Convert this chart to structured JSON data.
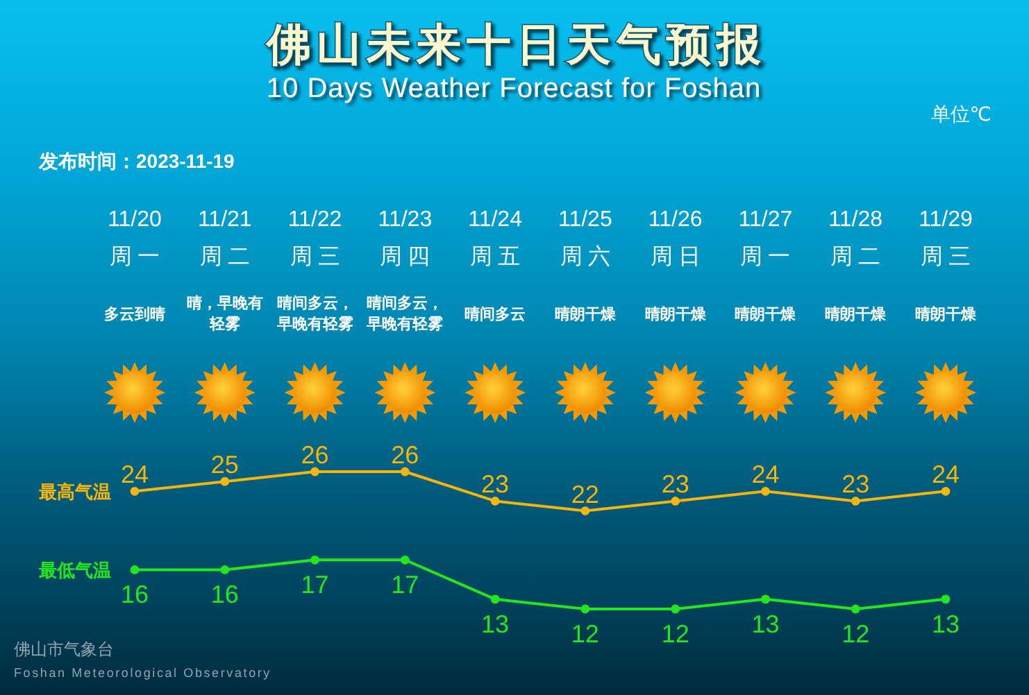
{
  "chart_data": {
    "type": "line",
    "title": "佛山未来十日天气预报",
    "subtitle": "10 Days Weather Forecast for Foshan",
    "categories": [
      "11/20\n周一",
      "11/21\n周二",
      "11/22\n周三",
      "11/23\n周四",
      "11/24\n周五",
      "11/25\n周六",
      "11/26\n周日",
      "11/27\n周一",
      "11/28\n周二",
      "11/29\n周三"
    ],
    "series": [
      {
        "name": "最高气温",
        "color": "#f5b50a",
        "values": [
          24,
          25,
          26,
          26,
          23,
          22,
          23,
          24,
          23,
          24
        ]
      },
      {
        "name": "最低气温",
        "color": "#22e61e",
        "values": [
          16,
          16,
          17,
          17,
          13,
          12,
          12,
          13,
          12,
          13
        ]
      }
    ],
    "data_labels": true,
    "marker": "circle",
    "annotations": [
      "单位℃",
      "发布时间：2023-11-19",
      "多云到晴",
      "晴，早晚有轻雾",
      "晴间多云，早晚有轻雾",
      "晴间多云，早晚有轻雾",
      "晴间多云",
      "晴朗干燥",
      "晴朗干燥",
      "晴朗干燥",
      "晴朗干燥",
      "晴朗干燥",
      "佛山市气象台",
      "Foshan Meteorological Observatory"
    ]
  }
}
